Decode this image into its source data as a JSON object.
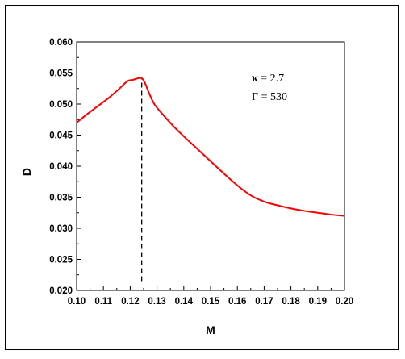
{
  "chart_data": {
    "type": "line",
    "title": "",
    "xlabel": "M",
    "ylabel": "D",
    "xlim": [
      0.1,
      0.2
    ],
    "ylim": [
      0.02,
      0.06
    ],
    "x_ticks": [
      "0.10",
      "0.11",
      "0.12",
      "0.13",
      "0.14",
      "0.15",
      "0.16",
      "0.17",
      "0.18",
      "0.19",
      "0.20"
    ],
    "y_ticks": [
      "0.020",
      "0.025",
      "0.030",
      "0.035",
      "0.040",
      "0.045",
      "0.050",
      "0.055",
      "0.060"
    ],
    "grid": false,
    "series": [
      {
        "color": "#ff0000",
        "x": [
          0.1,
          0.104,
          0.108,
          0.112,
          0.116,
          0.119,
          0.121,
          0.1225,
          0.1237,
          0.1245,
          0.1255,
          0.127,
          0.129,
          0.132,
          0.136,
          0.14,
          0.145,
          0.15,
          0.155,
          0.16,
          0.165,
          0.17,
          0.175,
          0.18,
          0.185,
          0.19,
          0.195,
          0.2
        ],
        "y": [
          0.047,
          0.0484,
          0.0497,
          0.051,
          0.0525,
          0.0537,
          0.0539,
          0.0541,
          0.0542,
          0.0541,
          0.0534,
          0.0518,
          0.05,
          0.0484,
          0.0465,
          0.0448,
          0.0428,
          0.0408,
          0.0388,
          0.0369,
          0.0353,
          0.0343,
          0.0337,
          0.0332,
          0.0328,
          0.0325,
          0.0322,
          0.032
        ]
      }
    ],
    "vline": {
      "x": 0.1243,
      "y_from": 0.0215,
      "y_to": 0.0542,
      "style": "dashed",
      "color": "#000000"
    },
    "annotations": [
      {
        "symbol": "κ",
        "text": " = 2.7"
      },
      {
        "symbol": "Γ",
        "text": " = 530"
      }
    ]
  }
}
